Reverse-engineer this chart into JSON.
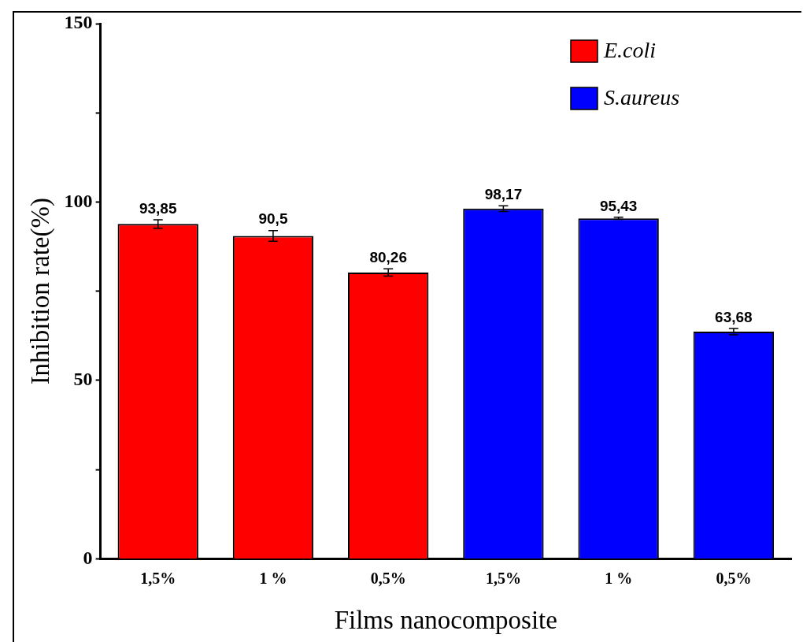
{
  "chart_data": {
    "type": "bar",
    "xlabel": "Films nanocomposite",
    "ylabel": "Inhibition rate(%)",
    "categories": [
      "1,5%",
      "1 %",
      "0,5%",
      "1,5%",
      "1 %",
      "0,5%"
    ],
    "series": [
      {
        "name": "E.coli",
        "color": "#ff0000",
        "values": [
          93.85,
          90.5,
          80.26,
          null,
          null,
          null
        ],
        "errors": [
          1.2,
          1.5,
          1,
          null,
          null,
          null
        ],
        "value_labels": [
          "93,85",
          "90,5",
          "80,26",
          null,
          null,
          null
        ]
      },
      {
        "name": "S.aureus",
        "color": "#0000ff",
        "values": [
          null,
          null,
          null,
          98.17,
          95.43,
          63.68
        ],
        "errors": [
          null,
          null,
          null,
          0.8,
          0.3,
          0.9
        ],
        "value_labels": [
          null,
          null,
          null,
          "98,17",
          "95,43",
          "63,68"
        ]
      }
    ],
    "ylim": [
      0,
      150
    ],
    "yticks": [
      0,
      {
        "value": 25,
        "label": null
      },
      50,
      {
        "value": 75,
        "label": null
      },
      100,
      {
        "value": 125,
        "label": null
      },
      150
    ],
    "grid": false,
    "legend": "top right"
  }
}
